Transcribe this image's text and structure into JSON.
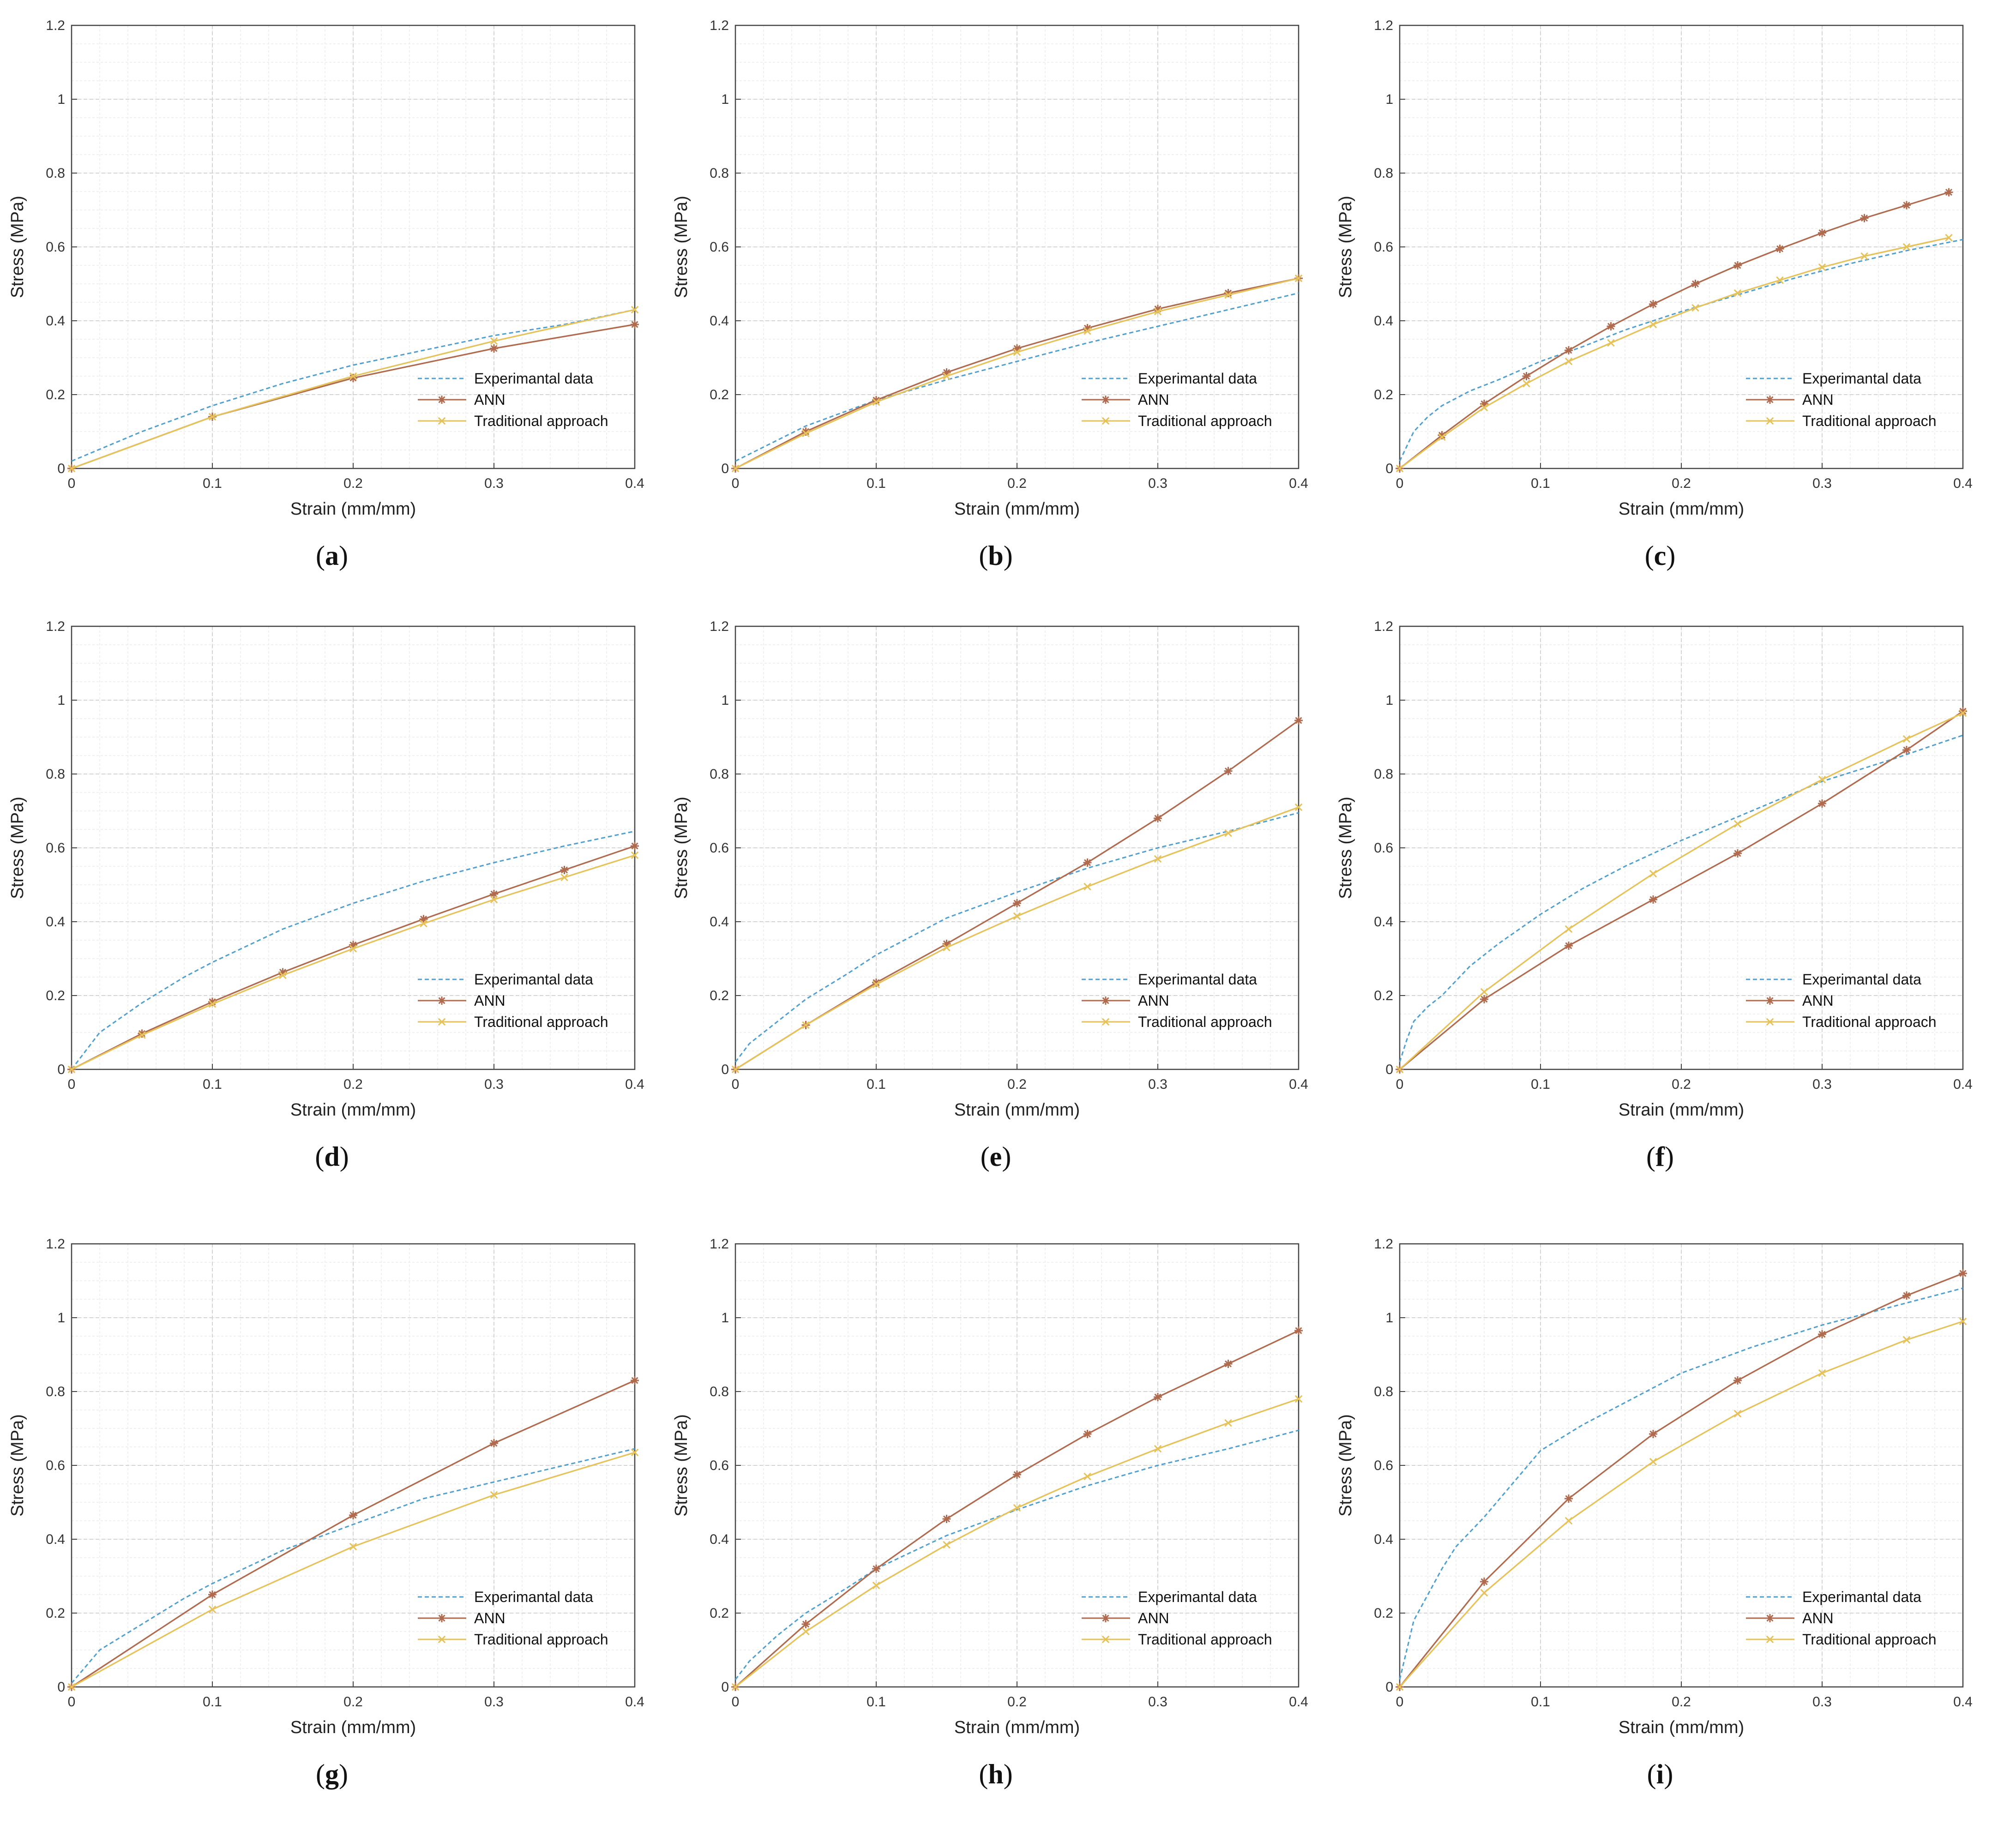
{
  "colors": {
    "experimental": "#4f9fcf",
    "ann": "#b06a4e",
    "traditional": "#e6c25a",
    "grid_major": "#d4d4d4",
    "grid_minor": "#ececec",
    "axis": "#444444"
  },
  "chart_data": [
    {
      "panel_label": "a",
      "type": "line",
      "xlabel": "Strain (mm/mm)",
      "ylabel": "Stress (MPa)",
      "xlim": [
        0,
        0.4
      ],
      "ylim": [
        0,
        1.2
      ],
      "xticks": [
        "0",
        "0.1",
        "0.2",
        "0.3",
        "0.4"
      ],
      "yticks": [
        "0",
        "0.2",
        "0.4",
        "0.6",
        "0.8",
        "1",
        "1.2"
      ],
      "legend": [
        "Experimantal data",
        "ANN",
        "Traditional approach"
      ],
      "legend_position": "lower-right",
      "series": [
        {
          "name": "Experimantal data",
          "style": "dashed",
          "marker": "none",
          "x": [
            0,
            0.05,
            0.1,
            0.15,
            0.2,
            0.25,
            0.3,
            0.35,
            0.4
          ],
          "y": [
            0.02,
            0.1,
            0.17,
            0.23,
            0.28,
            0.32,
            0.36,
            0.39,
            0.43
          ]
        },
        {
          "name": "ANN",
          "style": "solid",
          "marker": "asterisk",
          "x": [
            0,
            0.1,
            0.2,
            0.3,
            0.4
          ],
          "y": [
            0,
            0.14,
            0.245,
            0.325,
            0.39
          ]
        },
        {
          "name": "Traditional approach",
          "style": "solid",
          "marker": "x",
          "x": [
            0,
            0.1,
            0.2,
            0.3,
            0.4
          ],
          "y": [
            0,
            0.14,
            0.25,
            0.345,
            0.43
          ]
        }
      ]
    },
    {
      "panel_label": "b",
      "type": "line",
      "xlabel": "Strain (mm/mm)",
      "ylabel": "Stress (MPa)",
      "xlim": [
        0,
        0.4
      ],
      "ylim": [
        0,
        1.2
      ],
      "xticks": [
        "0",
        "0.1",
        "0.2",
        "0.3",
        "0.4"
      ],
      "yticks": [
        "0",
        "0.2",
        "0.4",
        "0.6",
        "0.8",
        "1",
        "1.2"
      ],
      "legend": [
        "Experimantal data",
        "ANN",
        "Traditional approach"
      ],
      "legend_position": "lower-right",
      "series": [
        {
          "name": "Experimantal data",
          "style": "dashed",
          "marker": "none",
          "x": [
            0,
            0.05,
            0.1,
            0.15,
            0.2,
            0.25,
            0.3,
            0.35,
            0.4
          ],
          "y": [
            0.02,
            0.115,
            0.185,
            0.24,
            0.29,
            0.34,
            0.385,
            0.43,
            0.475
          ]
        },
        {
          "name": "ANN",
          "style": "solid",
          "marker": "asterisk",
          "x": [
            0,
            0.05,
            0.1,
            0.15,
            0.2,
            0.25,
            0.3,
            0.35,
            0.4
          ],
          "y": [
            0,
            0.1,
            0.185,
            0.26,
            0.325,
            0.38,
            0.432,
            0.475,
            0.515
          ]
        },
        {
          "name": "Traditional approach",
          "style": "solid",
          "marker": "x",
          "x": [
            0,
            0.05,
            0.1,
            0.15,
            0.2,
            0.25,
            0.3,
            0.35,
            0.4
          ],
          "y": [
            0,
            0.095,
            0.18,
            0.25,
            0.315,
            0.372,
            0.425,
            0.47,
            0.515
          ]
        }
      ]
    },
    {
      "panel_label": "c",
      "type": "line",
      "xlabel": "Strain (mm/mm)",
      "ylabel": "Stress (MPa)",
      "xlim": [
        0,
        0.4
      ],
      "ylim": [
        0,
        1.2
      ],
      "xticks": [
        "0",
        "0.1",
        "0.2",
        "0.3",
        "0.4"
      ],
      "yticks": [
        "0",
        "0.2",
        "0.4",
        "0.6",
        "0.8",
        "1",
        "1.2"
      ],
      "legend": [
        "Experimantal data",
        "ANN",
        "Traditional approach"
      ],
      "legend_position": "lower-right",
      "series": [
        {
          "name": "Experimantal data",
          "style": "dashed",
          "marker": "none",
          "x": [
            0,
            0.01,
            0.02,
            0.03,
            0.05,
            0.07,
            0.1,
            0.13,
            0.16,
            0.2,
            0.24,
            0.28,
            0.32,
            0.36,
            0.4
          ],
          "y": [
            0.02,
            0.1,
            0.14,
            0.17,
            0.21,
            0.24,
            0.29,
            0.33,
            0.375,
            0.425,
            0.47,
            0.515,
            0.555,
            0.59,
            0.62
          ]
        },
        {
          "name": "ANN",
          "style": "solid",
          "marker": "asterisk",
          "x": [
            0,
            0.03,
            0.06,
            0.09,
            0.12,
            0.15,
            0.18,
            0.21,
            0.24,
            0.27,
            0.3,
            0.33,
            0.36,
            0.39
          ],
          "y": [
            0,
            0.09,
            0.175,
            0.25,
            0.32,
            0.385,
            0.445,
            0.5,
            0.55,
            0.595,
            0.638,
            0.678,
            0.713,
            0.748
          ]
        },
        {
          "name": "Traditional approach",
          "style": "solid",
          "marker": "x",
          "x": [
            0,
            0.03,
            0.06,
            0.09,
            0.12,
            0.15,
            0.18,
            0.21,
            0.24,
            0.27,
            0.3,
            0.33,
            0.36,
            0.39
          ],
          "y": [
            0,
            0.085,
            0.165,
            0.23,
            0.29,
            0.34,
            0.39,
            0.435,
            0.475,
            0.51,
            0.545,
            0.575,
            0.6,
            0.625
          ]
        }
      ]
    },
    {
      "panel_label": "d",
      "type": "line",
      "xlabel": "Strain (mm/mm)",
      "ylabel": "Stress (MPa)",
      "xlim": [
        0,
        0.4
      ],
      "ylim": [
        0,
        1.2
      ],
      "xticks": [
        "0",
        "0.1",
        "0.2",
        "0.3",
        "0.4"
      ],
      "yticks": [
        "0",
        "0.2",
        "0.4",
        "0.6",
        "0.8",
        "1",
        "1.2"
      ],
      "legend": [
        "Experimantal data",
        "ANN",
        "Traditional approach"
      ],
      "legend_position": "lower-right",
      "series": [
        {
          "name": "Experimantal data",
          "style": "dashed",
          "marker": "none",
          "x": [
            0,
            0.02,
            0.05,
            0.08,
            0.1,
            0.15,
            0.2,
            0.25,
            0.3,
            0.35,
            0.4
          ],
          "y": [
            0.0,
            0.1,
            0.18,
            0.25,
            0.29,
            0.38,
            0.45,
            0.51,
            0.56,
            0.605,
            0.645
          ]
        },
        {
          "name": "ANN",
          "style": "solid",
          "marker": "asterisk",
          "x": [
            0,
            0.05,
            0.1,
            0.15,
            0.2,
            0.25,
            0.3,
            0.35,
            0.4
          ],
          "y": [
            0,
            0.097,
            0.183,
            0.263,
            0.337,
            0.407,
            0.475,
            0.54,
            0.605
          ]
        },
        {
          "name": "Traditional approach",
          "style": "solid",
          "marker": "x",
          "x": [
            0,
            0.05,
            0.1,
            0.15,
            0.2,
            0.25,
            0.3,
            0.35,
            0.4
          ],
          "y": [
            0,
            0.093,
            0.177,
            0.255,
            0.327,
            0.395,
            0.46,
            0.52,
            0.58
          ]
        }
      ]
    },
    {
      "panel_label": "e",
      "type": "line",
      "xlabel": "Strain (mm/mm)",
      "ylabel": "Stress (MPa)",
      "xlim": [
        0,
        0.4
      ],
      "ylim": [
        0,
        1.2
      ],
      "xticks": [
        "0",
        "0.1",
        "0.2",
        "0.3",
        "0.4"
      ],
      "yticks": [
        "0",
        "0.2",
        "0.4",
        "0.6",
        "0.8",
        "1",
        "1.2"
      ],
      "legend": [
        "Experimantal data",
        "ANN",
        "Traditional approach"
      ],
      "legend_position": "lower-right",
      "series": [
        {
          "name": "Experimantal data",
          "style": "dashed",
          "marker": "none",
          "x": [
            0,
            0.01,
            0.03,
            0.05,
            0.08,
            0.1,
            0.15,
            0.2,
            0.25,
            0.3,
            0.35,
            0.4
          ],
          "y": [
            0.02,
            0.07,
            0.13,
            0.19,
            0.26,
            0.31,
            0.41,
            0.48,
            0.545,
            0.6,
            0.645,
            0.695
          ]
        },
        {
          "name": "ANN",
          "style": "solid",
          "marker": "asterisk",
          "x": [
            0,
            0.05,
            0.1,
            0.15,
            0.2,
            0.25,
            0.3,
            0.35,
            0.4
          ],
          "y": [
            0,
            0.12,
            0.235,
            0.34,
            0.45,
            0.56,
            0.68,
            0.808,
            0.945
          ]
        },
        {
          "name": "Traditional approach",
          "style": "solid",
          "marker": "x",
          "x": [
            0,
            0.05,
            0.1,
            0.15,
            0.2,
            0.25,
            0.3,
            0.35,
            0.4
          ],
          "y": [
            0,
            0.12,
            0.23,
            0.33,
            0.415,
            0.495,
            0.57,
            0.64,
            0.71
          ]
        }
      ]
    },
    {
      "panel_label": "f",
      "type": "line",
      "xlabel": "Strain (mm/mm)",
      "ylabel": "Stress (MPa)",
      "xlim": [
        0,
        0.4
      ],
      "ylim": [
        0,
        1.2
      ],
      "xticks": [
        "0",
        "0.1",
        "0.2",
        "0.3",
        "0.4"
      ],
      "yticks": [
        "0",
        "0.2",
        "0.4",
        "0.6",
        "0.8",
        "1",
        "1.2"
      ],
      "legend": [
        "Experimantal data",
        "ANN",
        "Traditional approach"
      ],
      "legend_position": "lower-right",
      "series": [
        {
          "name": "Experimantal data",
          "style": "dashed",
          "marker": "none",
          "x": [
            0,
            0.005,
            0.01,
            0.02,
            0.03,
            0.05,
            0.07,
            0.1,
            0.13,
            0.16,
            0.2,
            0.25,
            0.3,
            0.35,
            0.4
          ],
          "y": [
            0.02,
            0.08,
            0.13,
            0.17,
            0.2,
            0.28,
            0.34,
            0.42,
            0.49,
            0.55,
            0.62,
            0.7,
            0.78,
            0.84,
            0.905
          ]
        },
        {
          "name": "ANN",
          "style": "solid",
          "marker": "asterisk",
          "x": [
            0,
            0.06,
            0.12,
            0.18,
            0.24,
            0.3,
            0.36,
            0.4
          ],
          "y": [
            0,
            0.19,
            0.335,
            0.46,
            0.585,
            0.72,
            0.865,
            0.97
          ]
        },
        {
          "name": "Traditional approach",
          "style": "solid",
          "marker": "x",
          "x": [
            0,
            0.06,
            0.12,
            0.18,
            0.24,
            0.3,
            0.36,
            0.4
          ],
          "y": [
            0,
            0.21,
            0.38,
            0.53,
            0.665,
            0.785,
            0.895,
            0.965
          ]
        }
      ]
    },
    {
      "panel_label": "g",
      "type": "line",
      "xlabel": "Strain (mm/mm)",
      "ylabel": "Stress (MPa)",
      "xlim": [
        0,
        0.4
      ],
      "ylim": [
        0,
        1.2
      ],
      "xticks": [
        "0",
        "0.1",
        "0.2",
        "0.3",
        "0.4"
      ],
      "yticks": [
        "0",
        "0.2",
        "0.4",
        "0.6",
        "0.8",
        "1",
        "1.2"
      ],
      "legend": [
        "Experimantal data",
        "ANN",
        "Traditional approach"
      ],
      "legend_position": "lower-right",
      "series": [
        {
          "name": "Experimantal data",
          "style": "dashed",
          "marker": "none",
          "x": [
            0,
            0.02,
            0.05,
            0.08,
            0.1,
            0.15,
            0.2,
            0.25,
            0.3,
            0.35,
            0.4
          ],
          "y": [
            0.01,
            0.1,
            0.17,
            0.24,
            0.28,
            0.37,
            0.44,
            0.51,
            0.555,
            0.6,
            0.645
          ]
        },
        {
          "name": "ANN",
          "style": "solid",
          "marker": "asterisk",
          "x": [
            0,
            0.1,
            0.2,
            0.3,
            0.4
          ],
          "y": [
            0,
            0.25,
            0.465,
            0.66,
            0.83
          ]
        },
        {
          "name": "Traditional approach",
          "style": "solid",
          "marker": "x",
          "x": [
            0,
            0.1,
            0.2,
            0.3,
            0.4
          ],
          "y": [
            0,
            0.21,
            0.38,
            0.52,
            0.635
          ]
        }
      ]
    },
    {
      "panel_label": "h",
      "type": "line",
      "xlabel": "Strain (mm/mm)",
      "ylabel": "Stress (MPa)",
      "xlim": [
        0,
        0.4
      ],
      "ylim": [
        0,
        1.2
      ],
      "xticks": [
        "0",
        "0.1",
        "0.2",
        "0.3",
        "0.4"
      ],
      "yticks": [
        "0",
        "0.2",
        "0.4",
        "0.6",
        "0.8",
        "1",
        "1.2"
      ],
      "legend": [
        "Experimantal data",
        "ANN",
        "Traditional approach"
      ],
      "legend_position": "lower-right",
      "series": [
        {
          "name": "Experimantal data",
          "style": "dashed",
          "marker": "none",
          "x": [
            0,
            0.01,
            0.03,
            0.05,
            0.08,
            0.1,
            0.15,
            0.2,
            0.25,
            0.3,
            0.35,
            0.4
          ],
          "y": [
            0.02,
            0.07,
            0.14,
            0.2,
            0.27,
            0.32,
            0.41,
            0.48,
            0.545,
            0.6,
            0.645,
            0.695
          ]
        },
        {
          "name": "ANN",
          "style": "solid",
          "marker": "asterisk",
          "x": [
            0,
            0.05,
            0.1,
            0.15,
            0.2,
            0.25,
            0.3,
            0.35,
            0.4
          ],
          "y": [
            0,
            0.17,
            0.32,
            0.455,
            0.575,
            0.685,
            0.785,
            0.875,
            0.965
          ]
        },
        {
          "name": "Traditional approach",
          "style": "solid",
          "marker": "x",
          "x": [
            0,
            0.05,
            0.1,
            0.15,
            0.2,
            0.25,
            0.3,
            0.35,
            0.4
          ],
          "y": [
            0,
            0.15,
            0.275,
            0.385,
            0.485,
            0.57,
            0.645,
            0.715,
            0.78
          ]
        }
      ]
    },
    {
      "panel_label": "i",
      "type": "line",
      "xlabel": "Strain (mm/mm)",
      "ylabel": "Stress (MPa)",
      "xlim": [
        0,
        0.4
      ],
      "ylim": [
        0,
        1.2
      ],
      "xticks": [
        "0",
        "0.1",
        "0.2",
        "0.3",
        "0.4"
      ],
      "yticks": [
        "0",
        "0.2",
        "0.4",
        "0.6",
        "0.8",
        "1",
        "1.2"
      ],
      "legend": [
        "Experimantal data",
        "ANN",
        "Traditional approach"
      ],
      "legend_position": "lower-right",
      "series": [
        {
          "name": "Experimantal data",
          "style": "dashed",
          "marker": "none",
          "x": [
            0,
            0.005,
            0.01,
            0.02,
            0.03,
            0.04,
            0.06,
            0.08,
            0.1,
            0.13,
            0.16,
            0.2,
            0.25,
            0.3,
            0.35,
            0.4
          ],
          "y": [
            0.02,
            0.1,
            0.18,
            0.25,
            0.32,
            0.38,
            0.46,
            0.55,
            0.64,
            0.71,
            0.77,
            0.85,
            0.92,
            0.98,
            1.03,
            1.08
          ]
        },
        {
          "name": "ANN",
          "style": "solid",
          "marker": "asterisk",
          "x": [
            0,
            0.06,
            0.12,
            0.18,
            0.24,
            0.3,
            0.36,
            0.4
          ],
          "y": [
            0,
            0.285,
            0.51,
            0.685,
            0.83,
            0.955,
            1.06,
            1.12
          ]
        },
        {
          "name": "Traditional approach",
          "style": "solid",
          "marker": "x",
          "x": [
            0,
            0.06,
            0.12,
            0.18,
            0.24,
            0.3,
            0.36,
            0.4
          ],
          "y": [
            0,
            0.255,
            0.45,
            0.61,
            0.74,
            0.85,
            0.94,
            0.99
          ]
        }
      ]
    }
  ]
}
